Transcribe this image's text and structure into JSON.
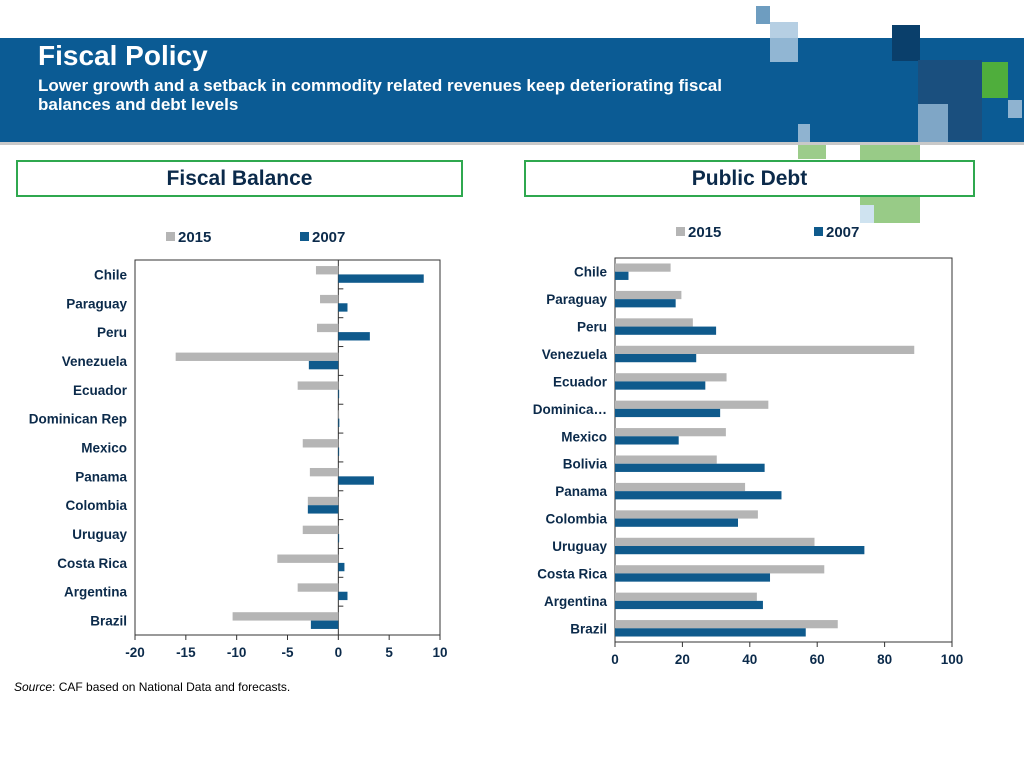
{
  "header": {
    "title": "Fiscal Policy",
    "subtitle": "Lower growth and a setback in commodity related revenues keep deteriorating fiscal balances and debt levels"
  },
  "colors": {
    "band": "#0b5b94",
    "series_2015": "#b5b5b5",
    "series_2007": "#0f5a8c",
    "panel_border": "#2fa84f"
  },
  "source": {
    "label": "Source",
    "text": ": CAF based on National Data and forecasts."
  },
  "chart_data": [
    {
      "type": "bar",
      "orientation": "horizontal",
      "title": "Fiscal Balance",
      "categories": [
        "Chile",
        "Paraguay",
        "Peru",
        "Venezuela",
        "Ecuador",
        "Dominican Rep",
        "Mexico",
        "Panama",
        "Colombia",
        "Uruguay",
        "Costa Rica",
        "Argentina",
        "Brazil"
      ],
      "series": [
        {
          "name": "2015",
          "values": [
            -2.2,
            -1.8,
            -2.1,
            -16.0,
            -4.0,
            0.0,
            -3.5,
            -2.8,
            -3.0,
            -3.5,
            -6.0,
            -4.0,
            -10.4
          ]
        },
        {
          "name": "2007",
          "values": [
            8.4,
            0.9,
            3.1,
            -2.9,
            0.0,
            0.1,
            0.0,
            3.5,
            -3.0,
            0.0,
            0.6,
            0.9,
            -2.7
          ]
        }
      ],
      "xlim": [
        -20,
        10
      ],
      "xticks": [
        -20,
        -15,
        -10,
        -5,
        0,
        5,
        10
      ],
      "legend_position": "top"
    },
    {
      "type": "bar",
      "orientation": "horizontal",
      "title": "Public Debt",
      "categories": [
        "Chile",
        "Paraguay",
        "Peru",
        "Venezuela",
        "Ecuador",
        "Dominica…",
        "Mexico",
        "Bolivia",
        "Panama",
        "Colombia",
        "Uruguay",
        "Costa Rica",
        "Argentina",
        "Brazil"
      ],
      "series": [
        {
          "name": "2015",
          "values": [
            16.5,
            19.7,
            23.1,
            88.8,
            33.1,
            45.5,
            32.9,
            30.2,
            38.6,
            42.4,
            59.2,
            62.1,
            42.1,
            66.1
          ]
        },
        {
          "name": "2007",
          "values": [
            4.0,
            18.0,
            30.0,
            24.1,
            26.8,
            31.2,
            18.9,
            44.4,
            49.4,
            36.5,
            74.0,
            46.0,
            43.9,
            56.6
          ]
        }
      ],
      "xlim": [
        0,
        100
      ],
      "xticks": [
        0,
        20,
        40,
        60,
        80,
        100
      ],
      "legend_position": "top"
    }
  ]
}
